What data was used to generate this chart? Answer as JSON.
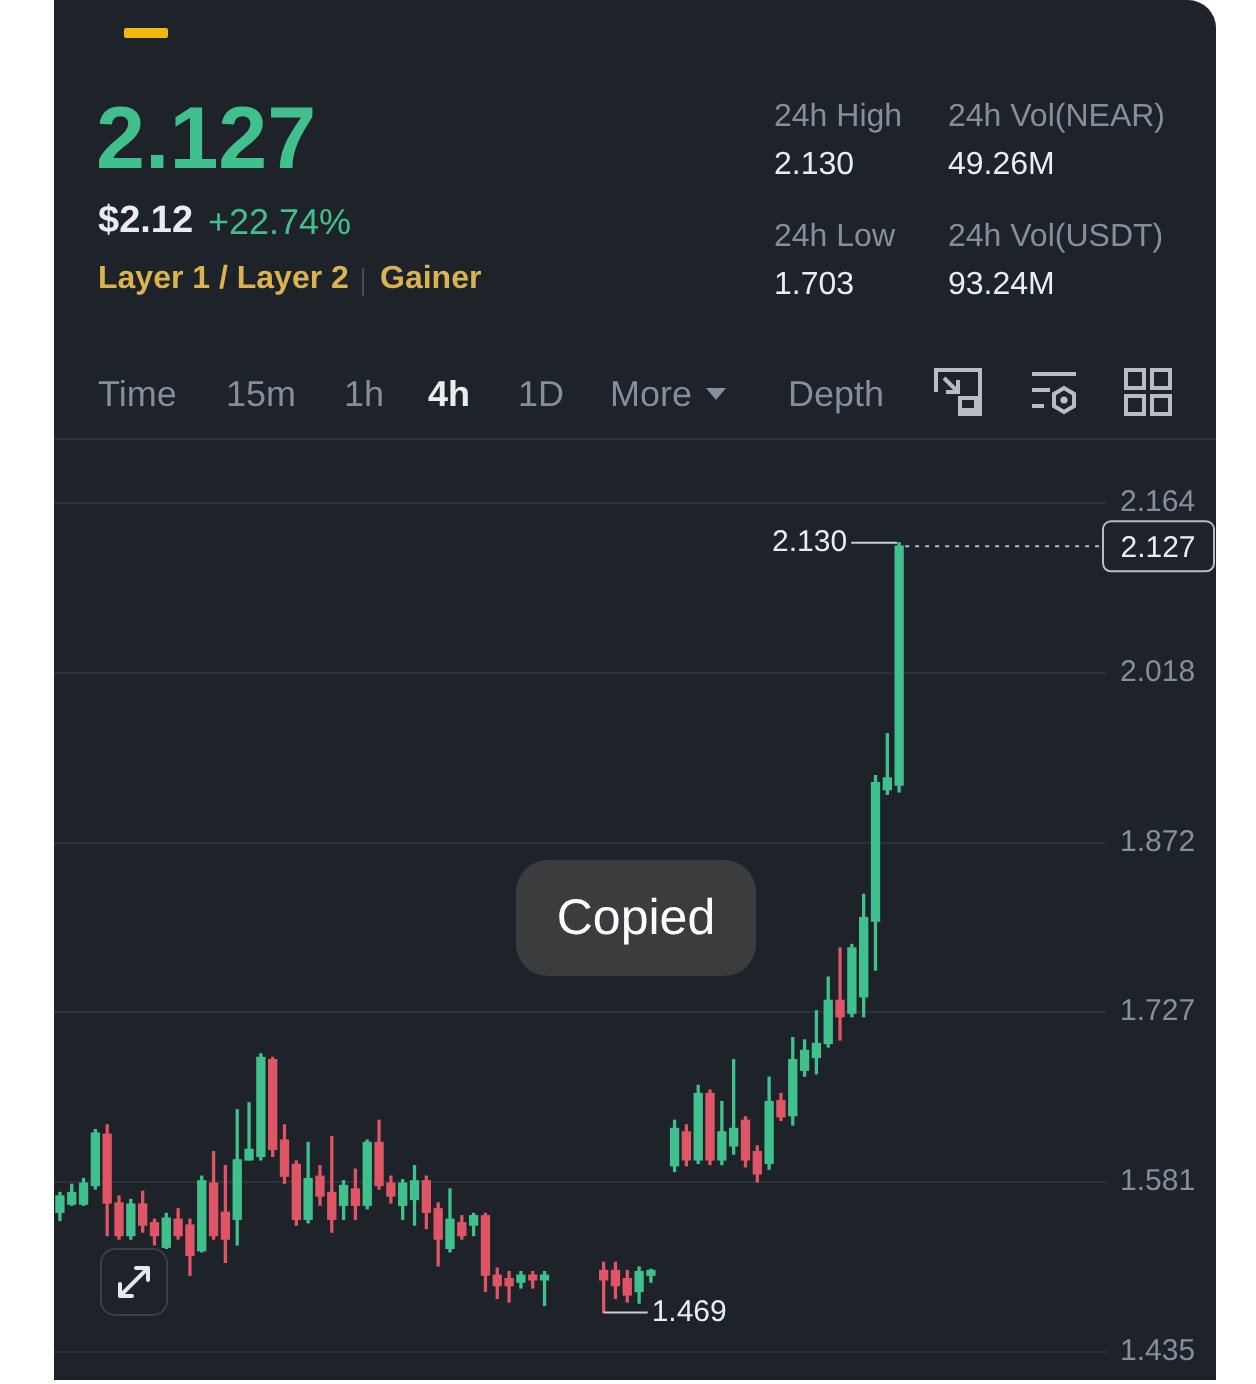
{
  "chart_data": [
    {
      "type": "other",
      "title": "2.127",
      "annotations": [
        "$2.12",
        "+22.74%",
        "Layer 1 / Layer 2",
        "Gainer",
        "24h High",
        "2.130",
        "24h Vol(NEAR)",
        "49.26M",
        "24h Low",
        "1.703",
        "24h Vol(USDT)",
        "93.24M",
        "Time",
        "15m",
        "1h",
        "4h",
        "1D",
        "More",
        "Depth"
      ]
    },
    {
      "type": "candlestick",
      "categories": [
        null,
        null,
        null,
        null,
        null,
        null,
        null,
        null,
        null,
        null,
        null,
        null,
        null,
        null,
        null,
        null,
        null,
        null,
        null,
        null,
        null,
        null,
        null,
        null,
        null,
        null,
        null,
        null,
        null,
        null,
        null,
        null,
        null,
        null,
        null,
        null,
        null,
        null,
        null,
        null,
        null,
        null,
        null,
        null,
        null,
        null,
        null,
        null,
        null,
        null,
        null,
        null,
        null,
        null,
        null,
        null,
        null,
        null,
        null,
        null,
        null,
        null,
        null,
        null,
        null,
        null,
        null,
        null,
        null,
        null,
        null,
        null,
        null,
        null,
        null,
        null,
        null,
        null,
        null,
        null,
        null,
        null,
        null,
        null,
        null,
        null,
        null,
        null,
        null
      ],
      "ohlc": [
        [
          1.555,
          1.572,
          1.548,
          1.569
        ],
        [
          1.562,
          1.579,
          1.561,
          1.572
        ],
        [
          1.562,
          1.584,
          1.561,
          1.58
        ],
        [
          1.578,
          1.626,
          1.575,
          1.623
        ],
        [
          1.622,
          1.63,
          1.535,
          1.563
        ],
        [
          1.563,
          1.569,
          1.532,
          1.535
        ],
        [
          1.535,
          1.566,
          1.532,
          1.562
        ],
        [
          1.562,
          1.573,
          1.538,
          1.544
        ],
        [
          1.546,
          1.549,
          1.527,
          1.535
        ],
        [
          1.525,
          1.554,
          1.524,
          1.55
        ],
        [
          1.549,
          1.558,
          1.532,
          1.535
        ],
        [
          1.544,
          1.549,
          1.501,
          1.518
        ],
        [
          1.522,
          1.586,
          1.521,
          1.582
        ],
        [
          1.58,
          1.607,
          1.532,
          1.535
        ],
        [
          1.555,
          1.595,
          1.512,
          1.532
        ],
        [
          1.549,
          1.643,
          1.527,
          1.6
        ],
        [
          1.6,
          1.649,
          1.6,
          1.609
        ],
        [
          1.603,
          1.691,
          1.6,
          1.688
        ],
        [
          1.686,
          1.688,
          1.603,
          1.609
        ],
        [
          1.617,
          1.63,
          1.58,
          1.586
        ],
        [
          1.596,
          1.599,
          1.544,
          1.549
        ],
        [
          1.549,
          1.615,
          1.546,
          1.584
        ],
        [
          1.586,
          1.595,
          1.561,
          1.569
        ],
        [
          1.572,
          1.62,
          1.538,
          1.549
        ],
        [
          1.561,
          1.582,
          1.549,
          1.578
        ],
        [
          1.575,
          1.592,
          1.549,
          1.561
        ],
        [
          1.561,
          1.617,
          1.558,
          1.615
        ],
        [
          1.615,
          1.634,
          1.575,
          1.578
        ],
        [
          1.58,
          1.586,
          1.563,
          1.569
        ],
        [
          1.561,
          1.583,
          1.549,
          1.58
        ],
        [
          1.566,
          1.595,
          1.544,
          1.582
        ],
        [
          1.582,
          1.586,
          1.541,
          1.555
        ],
        [
          1.558,
          1.563,
          1.509,
          1.532
        ],
        [
          1.524,
          1.575,
          1.521,
          1.549
        ],
        [
          1.546,
          1.552,
          1.532,
          1.535
        ],
        [
          1.544,
          1.554,
          1.535,
          1.552
        ],
        [
          1.552,
          1.554,
          1.487,
          1.501
        ],
        [
          1.501,
          1.507,
          1.481,
          1.492
        ],
        [
          1.498,
          1.504,
          1.478,
          1.492
        ],
        [
          1.495,
          1.504,
          1.49,
          1.501
        ],
        [
          1.501,
          1.504,
          1.49,
          1.497
        ],
        [
          1.497,
          1.504,
          1.475,
          1.501
        ],
        null,
        null,
        null,
        null,
        [
          1.505,
          1.512,
          1.469,
          1.497
        ],
        [
          1.505,
          1.512,
          1.481,
          1.492
        ],
        [
          1.498,
          1.505,
          1.478,
          1.484
        ],
        [
          1.487,
          1.508,
          1.477,
          1.504
        ],
        [
          1.501,
          1.506,
          1.495,
          1.505
        ],
        null,
        [
          1.595,
          1.634,
          1.59,
          1.627
        ],
        [
          1.624,
          1.63,
          1.595,
          1.6
        ],
        [
          1.6,
          1.664,
          1.597,
          1.657
        ],
        [
          1.657,
          1.66,
          1.596,
          1.6
        ],
        [
          1.6,
          1.65,
          1.596,
          1.624
        ],
        [
          1.612,
          1.686,
          1.605,
          1.627
        ],
        [
          1.634,
          1.637,
          1.594,
          1.6
        ],
        [
          1.607,
          1.612,
          1.581,
          1.588
        ],
        [
          1.597,
          1.671,
          1.592,
          1.65
        ],
        [
          1.651,
          1.657,
          1.634,
          1.637
        ],
        [
          1.638,
          1.705,
          1.63,
          1.686
        ],
        [
          1.677,
          1.703,
          1.672,
          1.694
        ],
        [
          1.688,
          1.728,
          1.674,
          1.7
        ],
        [
          1.7,
          1.757,
          1.697,
          1.737
        ],
        [
          1.737,
          1.782,
          1.703,
          1.723
        ],
        [
          1.726,
          1.785,
          1.723,
          1.782
        ],
        [
          1.74,
          1.828,
          1.723,
          1.808
        ],
        [
          1.805,
          1.93,
          1.763,
          1.924
        ],
        [
          1.918,
          1.966,
          1.914,
          1.928
        ],
        [
          1.922,
          2.13,
          1.916,
          2.127
        ],
        null,
        null,
        null,
        null,
        null,
        null,
        null,
        null,
        null,
        null,
        null,
        null,
        null,
        null,
        null,
        null,
        null
      ],
      "colors": [
        "#40c08c",
        "#40c08c",
        "#40c08c",
        "#40c08c",
        "#de5566",
        "#de5566",
        "#40c08c",
        "#de5566",
        "#de5566",
        "#40c08c",
        "#de5566",
        "#de5566",
        "#40c08c",
        "#de5566",
        "#de5566",
        "#40c08c",
        "#40c08c",
        "#40c08c",
        "#de5566",
        "#de5566",
        "#de5566",
        "#40c08c",
        "#de5566",
        "#de5566",
        "#40c08c",
        "#de5566",
        "#40c08c",
        "#de5566",
        "#de5566",
        "#40c08c",
        "#40c08c",
        "#de5566",
        "#de5566",
        "#40c08c",
        "#de5566",
        "#40c08c",
        "#de5566",
        "#de5566",
        "#de5566",
        "#40c08c",
        "#de5566",
        "#40c08c",
        null,
        null,
        null,
        null,
        "#de5566",
        "#de5566",
        "#de5566",
        "#40c08c",
        "#40c08c",
        null,
        "#40c08c",
        "#de5566",
        "#40c08c",
        "#de5566",
        "#40c08c",
        "#40c08c",
        "#de5566",
        "#de5566",
        "#40c08c",
        "#de5566",
        "#40c08c",
        "#40c08c",
        "#40c08c",
        "#40c08c",
        "#de5566",
        "#40c08c",
        "#40c08c",
        "#40c08c",
        "#40c08c",
        "#40c08c",
        null,
        null,
        null,
        null,
        null,
        null,
        null,
        null,
        null,
        null,
        null,
        null,
        null,
        null,
        null,
        null,
        null
      ],
      "ylim": [
        1.435,
        2.22
      ],
      "yticks": [
        1.435,
        1.581,
        1.727,
        1.872,
        2.018,
        2.164
      ],
      "grid": "y",
      "tick_labels": "y",
      "ref_lines": [
        {
          "axis": "y",
          "value": 2.127,
          "label": "2.127",
          "line_style": "dotted",
          "color": "#b7bdc6"
        }
      ],
      "annotations": [
        "2.130",
        "1.469",
        "Copied"
      ]
    }
  ]
}
